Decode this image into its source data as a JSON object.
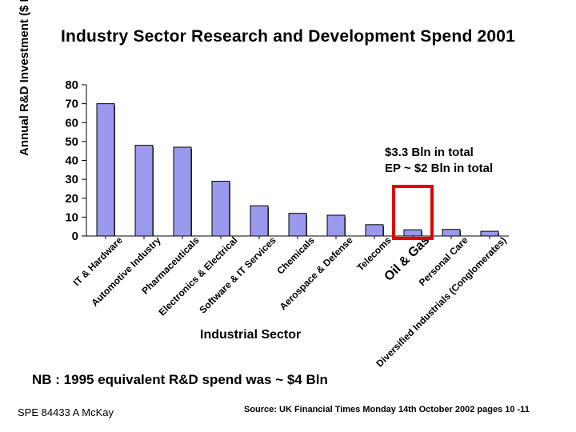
{
  "chart_data": {
    "type": "bar",
    "title": "Industry Sector Research and Development Spend 2001",
    "ylabel": "Annual R&D Investment ($ Bln)",
    "xlabel": "Industrial Sector",
    "ylim": [
      0,
      80
    ],
    "yticks": [
      "0",
      "10",
      "20",
      "30",
      "40",
      "50",
      "60",
      "70",
      "80"
    ],
    "categories": [
      "IT & Hardware",
      "Automotive Industry",
      "Pharmaceuticals",
      "Electronics & Electrical",
      "Software & IT Services",
      "Chemicals",
      "Aerospace & Defense",
      "Telecoms",
      "Oil & Gas",
      "Personal Care",
      "Diversified Industrials (Conglomerates)"
    ],
    "values": [
      70,
      48,
      47,
      29,
      16,
      12,
      11,
      6,
      3.3,
      3.5,
      2.5
    ],
    "highlight_category": "Oil & Gas",
    "annotation_line1": "$3.3 Bln in total",
    "annotation_line2": "EP ~ $2 Bln in total",
    "bar_color": "#9999ee",
    "highlight_color": "#e00000"
  },
  "note": "NB : 1995 equivalent R&D spend was ~ $4 Bln",
  "footer_left": "SPE 84433  A McKay",
  "footer_source": "Source:  UK Financial Times Monday 14th October 2002 pages 10 -11"
}
